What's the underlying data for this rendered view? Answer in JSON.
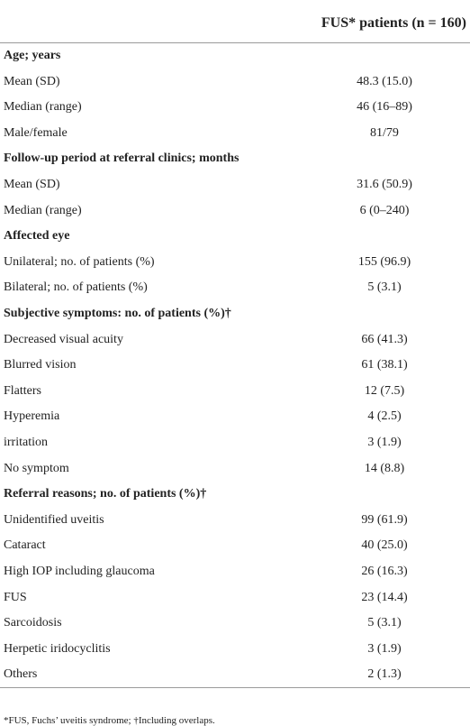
{
  "table": {
    "header": "FUS* patients (n = 160)",
    "sections": [
      {
        "title": "Age; years",
        "rows": [
          [
            "Mean (SD)",
            "48.3 (15.0)"
          ],
          [
            "Median (range)",
            "46 (16–89)"
          ],
          [
            "Male/female",
            "81/79"
          ]
        ]
      },
      {
        "title": "Follow-up period at referral clinics; months",
        "rows": [
          [
            "Mean (SD)",
            "31.6 (50.9)"
          ],
          [
            "Median (range)",
            "6 (0–240)"
          ]
        ]
      },
      {
        "title": "Affected eye",
        "rows": [
          [
            "Unilateral; no. of patients (%)",
            "155 (96.9)"
          ],
          [
            "Bilateral; no. of patients (%)",
            "5 (3.1)"
          ]
        ]
      },
      {
        "title": "Subjective symptoms: no. of patients (%)†",
        "rows": [
          [
            "Decreased visual acuity",
            "66 (41.3)"
          ],
          [
            "Blurred vision",
            "61 (38.1)"
          ],
          [
            "Flatters",
            "12 (7.5)"
          ],
          [
            "Hyperemia",
            "4 (2.5)"
          ],
          [
            "irritation",
            "3 (1.9)"
          ],
          [
            "No symptom",
            "14 (8.8)"
          ]
        ]
      },
      {
        "title": "Referral reasons; no. of patients (%)†",
        "rows": [
          [
            "Unidentified uveitis",
            "99 (61.9)"
          ],
          [
            "Cataract",
            "40 (25.0)"
          ],
          [
            "High IOP including glaucoma",
            "26 (16.3)"
          ],
          [
            "FUS",
            "23 (14.4)"
          ],
          [
            "Sarcoidosis",
            "5 (3.1)"
          ],
          [
            "Herpetic iridocyclitis",
            "3 (1.9)"
          ],
          [
            "Others",
            "2 (1.3)"
          ]
        ]
      }
    ],
    "footnote": "*FUS, Fuchs’ uveitis syndrome; †Including overlaps."
  }
}
